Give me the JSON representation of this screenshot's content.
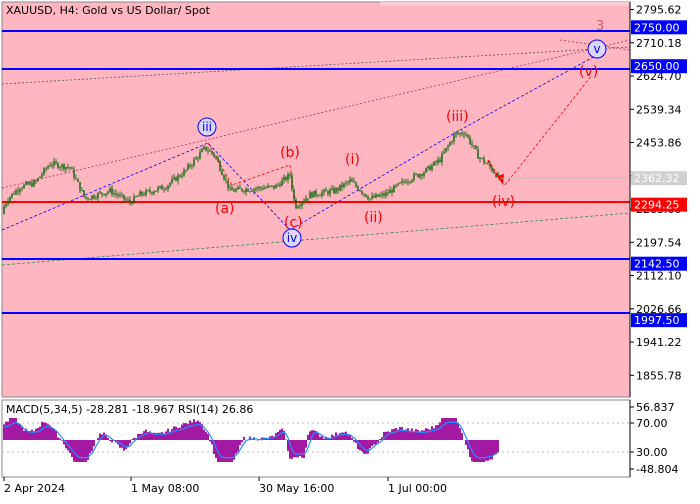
{
  "chart_title": "XAUUSD, H4:  Gold vs US Dollar/ Spot",
  "colors": {
    "pane_bg": "#ffb6c1",
    "price_bg": "#ffffff",
    "candle": "#006400",
    "level_line": "#0000ff",
    "support_line": "#ff0000",
    "wave_label": "#ff0000",
    "wave_blue": "#0000ff",
    "macd_hist": "#9b009b",
    "macd_signal": "#1e90ff"
  },
  "price_axis": {
    "ticks": [
      "2795.62",
      "2710.18",
      "2624.70",
      "2539.34",
      "2453.86",
      "2368.38",
      "2283.00",
      "2197.54",
      "2112.10",
      "2026.66",
      "1941.22",
      "1855.78"
    ],
    "current_price_label": "2362.32",
    "level_labels": [
      "2750.00",
      "2650.00",
      "2294.25",
      "2142.50",
      "1997.50"
    ]
  },
  "indicator": {
    "title": "MACD(5,34,5) -28.281 -18.967 RSI(14) 26.86",
    "ticks": [
      "56.837",
      "70.00",
      "30.00",
      "-48.804"
    ]
  },
  "time_axis": {
    "labels": [
      "2 Apr 2024",
      "1 May 08:00",
      "30 May 16:00",
      "1 Jul 00:00"
    ]
  },
  "wave_labels": {
    "three": "3",
    "iii_blue": "iii",
    "a": "(a)",
    "b": "(b)",
    "c": "(c)",
    "iv_blue": "iv",
    "i": "(i)",
    "ii": "(ii)",
    "iii": "(iii)",
    "iv": "(iv)",
    "v": "(v)",
    "v_blue": "v"
  },
  "chart_data": {
    "type": "candlestick",
    "title": "XAUUSD, H4:  Gold vs US Dollar/ Spot",
    "ylim": [
      1800,
      2815
    ],
    "x": [
      "2 Apr 2024",
      "1 May 08:00",
      "30 May 16:00",
      "1 Jul 00:00"
    ],
    "price_path": [
      [
        0,
        2270
      ],
      [
        8,
        2310
      ],
      [
        20,
        2340
      ],
      [
        35,
        2350
      ],
      [
        50,
        2400
      ],
      [
        70,
        2390
      ],
      [
        85,
        2310
      ],
      [
        110,
        2330
      ],
      [
        130,
        2300
      ],
      [
        140,
        2320
      ],
      [
        165,
        2340
      ],
      [
        185,
        2380
      ],
      [
        205,
        2440
      ],
      [
        215,
        2420
      ],
      [
        230,
        2330
      ],
      [
        250,
        2335
      ],
      [
        275,
        2340
      ],
      [
        290,
        2370
      ],
      [
        295,
        2290
      ],
      [
        310,
        2320
      ],
      [
        335,
        2330
      ],
      [
        350,
        2355
      ],
      [
        370,
        2310
      ],
      [
        385,
        2320
      ],
      [
        405,
        2355
      ],
      [
        425,
        2380
      ],
      [
        440,
        2410
      ],
      [
        455,
        2475
      ],
      [
        465,
        2480
      ],
      [
        478,
        2420
      ],
      [
        490,
        2390
      ],
      [
        500,
        2362
      ]
    ],
    "horizontal_levels": [
      {
        "value": 2750.0,
        "style": "resistance"
      },
      {
        "value": 2650.0,
        "style": "resistance"
      },
      {
        "value": 2294.25,
        "style": "support"
      },
      {
        "value": 2142.5,
        "style": "support"
      },
      {
        "value": 1997.5,
        "style": "support"
      }
    ],
    "indicator": {
      "name": "MACD(5,34,5) RSI(14)",
      "macd_main": -28.281,
      "macd_signal": -18.967,
      "rsi": 26.86,
      "ylim": [
        -48.804,
        56.837
      ],
      "levels": [
        70,
        30
      ]
    }
  }
}
